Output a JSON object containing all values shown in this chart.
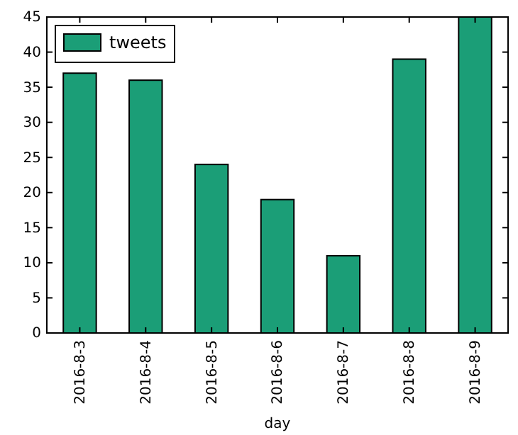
{
  "chart_data": {
    "type": "bar",
    "xlabel": "day",
    "categories": [
      "2016-8-3",
      "2016-8-4",
      "2016-8-5",
      "2016-8-6",
      "2016-8-7",
      "2016-8-8",
      "2016-8-9"
    ],
    "series": [
      {
        "name": "tweets",
        "color": "#1b9e77",
        "values": [
          37,
          36,
          24,
          19,
          11,
          39,
          45
        ]
      }
    ],
    "ylim": [
      0,
      45
    ],
    "yticks": [
      0,
      5,
      10,
      15,
      20,
      25,
      30,
      35,
      40,
      45
    ],
    "legend": "top left"
  }
}
